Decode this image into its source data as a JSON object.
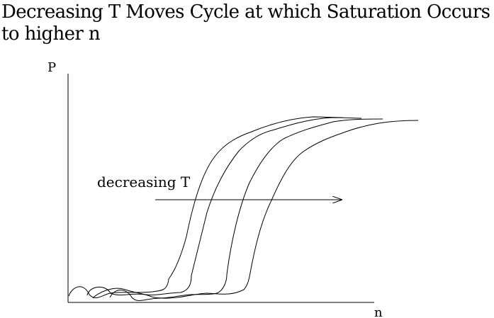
{
  "title": {
    "line1": "Decreasing T Moves Cycle at which Saturation Occurs",
    "line2": "to higher n"
  },
  "diagram": {
    "y_axis_label": "P",
    "x_axis_label": "n",
    "annotation": "decreasing T",
    "curve_count": 4
  }
}
